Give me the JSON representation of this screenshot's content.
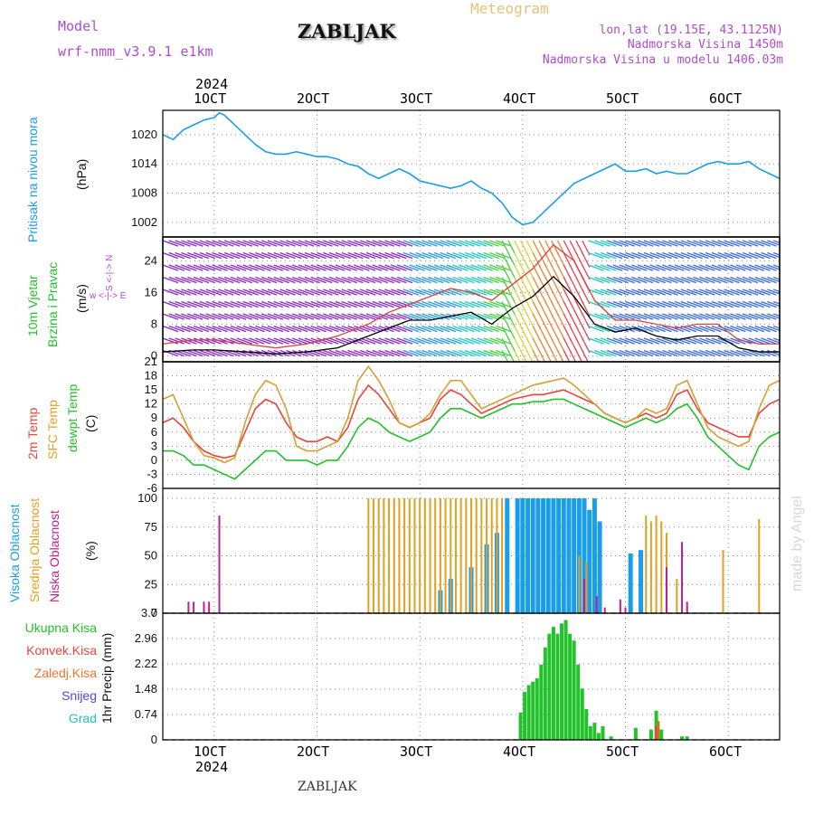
{
  "header": {
    "model_label": "Model",
    "model_value": "wrf-nmm_v3.9.1 e1km",
    "station_title": "ZABLJAK",
    "product_title": "Meteogram",
    "coords": "lon,lat (19.15E, 43.1125N)",
    "altitude": "Nadmorska Visina 1450m",
    "model_altitude": "Nadmorska Visina u modelu 1406.03m",
    "footer_station": "ZABLJAK",
    "watermark": "made by Angel"
  },
  "axes": {
    "year_top": "2024",
    "year_bottom": "2024",
    "date_ticks": [
      "1OCT",
      "2OCT",
      "3OCT",
      "4OCT",
      "5OCT",
      "6OCT"
    ]
  },
  "panel_labels": {
    "pressure": {
      "name": "Pritisak na nivou mora",
      "unit": "(hPa)"
    },
    "wind": {
      "name1": "10m Vjetar",
      "name2": "Brzina i Pravac",
      "unit": "(m/s)",
      "compass_ew": "w <-|-> E",
      "compass_ns": "S <-|-> N"
    },
    "temp": {
      "name1": "2m Temp",
      "name2": "SFC Temp",
      "name3": "dewpt Temp",
      "unit": "(C)"
    },
    "cloud": {
      "name1": "Visoka Oblacnost",
      "name2": "Srednja Oblacnost",
      "name3": "Niska Oblacnost",
      "unit": "(%)"
    },
    "precip": {
      "name": "1hr Precip (mm)",
      "legend": [
        "Ukupna Kisa",
        "Konvek.Kisa",
        "Zaledj.Kisa",
        "Snijeg",
        "Grad"
      ]
    }
  },
  "chart_data": [
    {
      "type": "line",
      "panel": "pressure",
      "ylabel": "(hPa)",
      "yticks": [
        1002,
        1008,
        1014,
        1020
      ],
      "ylim": [
        999,
        1025
      ],
      "xlim": [
        0.5,
        6.5
      ],
      "color": "#1a9ee8",
      "x": [
        0.5,
        0.6,
        0.7,
        0.8,
        0.9,
        1.0,
        1.05,
        1.1,
        1.2,
        1.3,
        1.4,
        1.5,
        1.6,
        1.7,
        1.8,
        1.9,
        2.0,
        2.1,
        2.2,
        2.3,
        2.4,
        2.5,
        2.6,
        2.7,
        2.8,
        2.9,
        3.0,
        3.1,
        3.2,
        3.3,
        3.4,
        3.5,
        3.6,
        3.7,
        3.8,
        3.9,
        4.0,
        4.1,
        4.2,
        4.3,
        4.4,
        4.5,
        4.6,
        4.7,
        4.8,
        4.9,
        5.0,
        5.1,
        5.2,
        5.3,
        5.4,
        5.5,
        5.6,
        5.7,
        5.8,
        5.9,
        6.0,
        6.1,
        6.2,
        6.3,
        6.4,
        6.5
      ],
      "values": [
        1020,
        1019,
        1021,
        1022,
        1023,
        1023.5,
        1024.5,
        1024,
        1022,
        1020,
        1018,
        1016.5,
        1016,
        1016,
        1016.5,
        1016,
        1015.5,
        1015.5,
        1015,
        1014,
        1013.5,
        1012,
        1011,
        1012,
        1013,
        1012,
        1010.5,
        1010,
        1009.5,
        1009,
        1009.5,
        1010.5,
        1009,
        1008,
        1006,
        1003,
        1001.5,
        1002,
        1004,
        1006,
        1008,
        1010,
        1011,
        1012,
        1013,
        1014,
        1012.5,
        1012.5,
        1013,
        1012,
        1012.5,
        1012,
        1012,
        1013,
        1014,
        1014.5,
        1014,
        1014,
        1014.5,
        1013,
        1012,
        1011
      ]
    },
    {
      "type": "line",
      "panel": "wind",
      "ylabel": "(m/s)",
      "yticks": [
        0,
        8,
        16,
        24
      ],
      "ylim": [
        -1.5,
        30
      ],
      "xlim": [
        0.5,
        6.5
      ],
      "series": [
        {
          "color": "#000000",
          "x": [
            0.5,
            0.8,
            1.0,
            1.3,
            1.6,
            1.9,
            2.2,
            2.5,
            2.7,
            2.9,
            3.1,
            3.3,
            3.5,
            3.7,
            3.9,
            4.1,
            4.3,
            4.5,
            4.7,
            4.9,
            5.1,
            5.3,
            5.5,
            5.7,
            5.9,
            6.1,
            6.3,
            6.5
          ],
          "values": [
            1,
            1.5,
            1.5,
            1,
            0.5,
            1,
            2,
            5,
            7,
            9,
            9,
            10,
            11,
            8,
            12,
            15,
            20,
            15,
            8,
            6,
            7,
            5,
            4,
            5,
            5,
            2,
            1,
            1
          ]
        },
        {
          "color": "#e04040",
          "x": [
            0.5,
            0.8,
            1.0,
            1.3,
            1.6,
            1.9,
            2.2,
            2.5,
            2.7,
            2.9,
            3.1,
            3.3,
            3.5,
            3.7,
            3.9,
            4.1,
            4.3,
            4.5,
            4.7,
            4.9,
            5.1,
            5.3,
            5.5,
            5.7,
            5.9,
            6.1,
            6.3,
            6.5
          ],
          "values": [
            3,
            4,
            4,
            3,
            2,
            3,
            5,
            8,
            11,
            13,
            15,
            17,
            16,
            14,
            18,
            22,
            28,
            24,
            14,
            9,
            9,
            8,
            7,
            8,
            8,
            4,
            3,
            3
          ]
        }
      ]
    },
    {
      "type": "line",
      "panel": "temperature",
      "ylabel": "(C)",
      "yticks": [
        -6,
        -3,
        0,
        3,
        6,
        9,
        12,
        15,
        18,
        21
      ],
      "ylim": [
        -6,
        21
      ],
      "xlim": [
        0.5,
        6.5
      ],
      "x": [
        0.5,
        0.6,
        0.7,
        0.8,
        0.9,
        1.0,
        1.1,
        1.2,
        1.3,
        1.4,
        1.5,
        1.6,
        1.7,
        1.8,
        1.9,
        2.0,
        2.1,
        2.2,
        2.3,
        2.4,
        2.5,
        2.6,
        2.7,
        2.8,
        2.9,
        3.0,
        3.1,
        3.2,
        3.3,
        3.4,
        3.5,
        3.6,
        3.7,
        3.8,
        3.9,
        4.0,
        4.1,
        4.2,
        4.3,
        4.4,
        4.5,
        4.6,
        4.7,
        4.8,
        4.9,
        5.0,
        5.1,
        5.2,
        5.3,
        5.4,
        5.5,
        5.6,
        5.7,
        5.8,
        5.9,
        6.0,
        6.1,
        6.2,
        6.3,
        6.4,
        6.5
      ],
      "series": [
        {
          "name": "2m Temp",
          "color": "#e8453c",
          "values": [
            8,
            9,
            7,
            4,
            2,
            1,
            0.5,
            1,
            6,
            11,
            13,
            12,
            8,
            5,
            4,
            4,
            5,
            4,
            7,
            13,
            16,
            14,
            11,
            8,
            7,
            8,
            9,
            13,
            15,
            14,
            12,
            10,
            11,
            12,
            13,
            13.5,
            14,
            14,
            14.5,
            15,
            14,
            13,
            12,
            10,
            9,
            8,
            9,
            10,
            9,
            10,
            14,
            15,
            11,
            8,
            7,
            6,
            5,
            5,
            10,
            12,
            13
          ]
        },
        {
          "name": "SFC Temp",
          "color": "#d4a030",
          "values": [
            13,
            14,
            9,
            4,
            1,
            0.5,
            -0.5,
            0.5,
            8,
            14,
            17,
            16,
            11,
            3,
            2,
            2,
            3,
            4,
            9,
            17,
            20,
            17,
            13,
            8,
            7,
            8,
            10,
            14,
            17,
            17,
            14,
            11,
            12,
            13,
            14,
            15,
            16,
            16.5,
            17,
            17.5,
            16,
            14,
            12,
            10,
            9,
            8,
            9,
            11,
            10,
            11,
            16,
            17,
            12,
            7,
            5,
            4,
            3,
            4,
            11,
            16,
            17
          ]
        },
        {
          "name": "dewpt Temp",
          "color": "#22c22a",
          "values": [
            2,
            2,
            1,
            -1,
            -1,
            -2,
            -3,
            -4,
            -2,
            0,
            2,
            2,
            0,
            0,
            0,
            -1,
            0,
            0,
            3,
            7,
            9,
            8,
            6,
            5,
            4,
            5,
            6,
            9,
            11,
            11,
            10,
            9,
            10,
            11,
            12,
            12,
            12.5,
            12.5,
            13,
            13,
            12,
            11,
            10,
            9,
            8,
            7,
            8,
            9,
            8,
            9,
            11,
            12,
            9,
            5,
            3,
            1,
            -1,
            -2,
            3,
            5,
            6
          ]
        }
      ]
    },
    {
      "type": "bar",
      "panel": "cloud",
      "ylabel": "(%)",
      "yticks": [
        0,
        25,
        50,
        75,
        100
      ],
      "ylim": [
        0,
        100
      ],
      "xlim": [
        0.5,
        6.5
      ],
      "series": [
        {
          "name": "Visoka Oblacnost",
          "color": "#1a9ee8",
          "x": [
            3.2,
            3.3,
            3.5,
            3.65,
            3.75,
            3.85,
            3.95,
            4.0,
            4.05,
            4.1,
            4.15,
            4.2,
            4.25,
            4.3,
            4.35,
            4.4,
            4.45,
            4.5,
            4.55,
            4.6,
            4.65,
            4.7,
            4.75,
            5.05,
            5.15
          ],
          "values": [
            20,
            30,
            40,
            60,
            70,
            100,
            100,
            100,
            100,
            100,
            100,
            100,
            100,
            100,
            100,
            100,
            100,
            100,
            100,
            100,
            90,
            100,
            80,
            52,
            55
          ]
        },
        {
          "name": "Srednja Oblacnost",
          "color": "#e0a020",
          "x": [
            2.5,
            2.55,
            2.6,
            2.65,
            2.7,
            2.75,
            2.8,
            2.85,
            2.9,
            2.95,
            3.0,
            3.05,
            3.1,
            3.15,
            3.2,
            3.25,
            3.3,
            3.35,
            3.4,
            3.45,
            3.5,
            3.55,
            3.6,
            3.65,
            3.7,
            3.75,
            3.8,
            4.55,
            4.62,
            5.2,
            5.25,
            5.3,
            5.35,
            5.4,
            5.5,
            5.95,
            6.3
          ],
          "values": [
            100,
            100,
            100,
            100,
            100,
            100,
            100,
            100,
            100,
            100,
            100,
            100,
            100,
            100,
            100,
            100,
            100,
            100,
            100,
            100,
            100,
            100,
            100,
            100,
            100,
            100,
            100,
            50,
            45,
            85,
            80,
            85,
            80,
            70,
            30,
            55,
            82
          ]
        },
        {
          "name": "Niska Oblacnost",
          "color": "#c0208f",
          "x": [
            0.75,
            0.8,
            0.9,
            0.95,
            1.05,
            4.6,
            4.72,
            4.8,
            4.95,
            5.0,
            5.4,
            5.55,
            5.6
          ],
          "values": [
            10,
            10,
            10,
            10,
            85,
            30,
            15,
            5,
            12,
            5,
            40,
            62,
            10
          ]
        }
      ]
    },
    {
      "type": "bar",
      "panel": "precipitation",
      "ylabel": "1hr Precip (mm)",
      "yticks": [
        0,
        0.74,
        1.48,
        2.22,
        2.96,
        3.7
      ],
      "ylim": [
        0,
        3.7
      ],
      "xlim": [
        0.5,
        6.5
      ],
      "series": [
        {
          "name": "Ukupna Kisa",
          "color": "#22c22a",
          "x": [
            3.98,
            4.02,
            4.06,
            4.1,
            4.14,
            4.18,
            4.22,
            4.26,
            4.3,
            4.34,
            4.38,
            4.42,
            4.46,
            4.5,
            4.54,
            4.58,
            4.62,
            4.66,
            4.7,
            4.74,
            4.78,
            4.86,
            5.1,
            5.25,
            5.3,
            5.35,
            5.55,
            5.6
          ],
          "values": [
            0.8,
            1.4,
            1.6,
            1.7,
            1.8,
            2.2,
            2.7,
            3.1,
            3.3,
            3.1,
            3.4,
            3.5,
            3.1,
            2.9,
            2.2,
            1.5,
            0.9,
            0.4,
            0.5,
            0.2,
            0.4,
            0.1,
            0.35,
            0.3,
            0.85,
            0.3,
            0.1,
            0.1
          ]
        },
        {
          "name": "Konvek.Kisa",
          "color": "#e8453c",
          "x": [
            5.3
          ],
          "values": [
            0.4
          ]
        },
        {
          "name": "Zaledj.Kisa",
          "color": "#c07820",
          "x": [
            5.32
          ],
          "values": [
            0.55
          ]
        }
      ]
    }
  ]
}
